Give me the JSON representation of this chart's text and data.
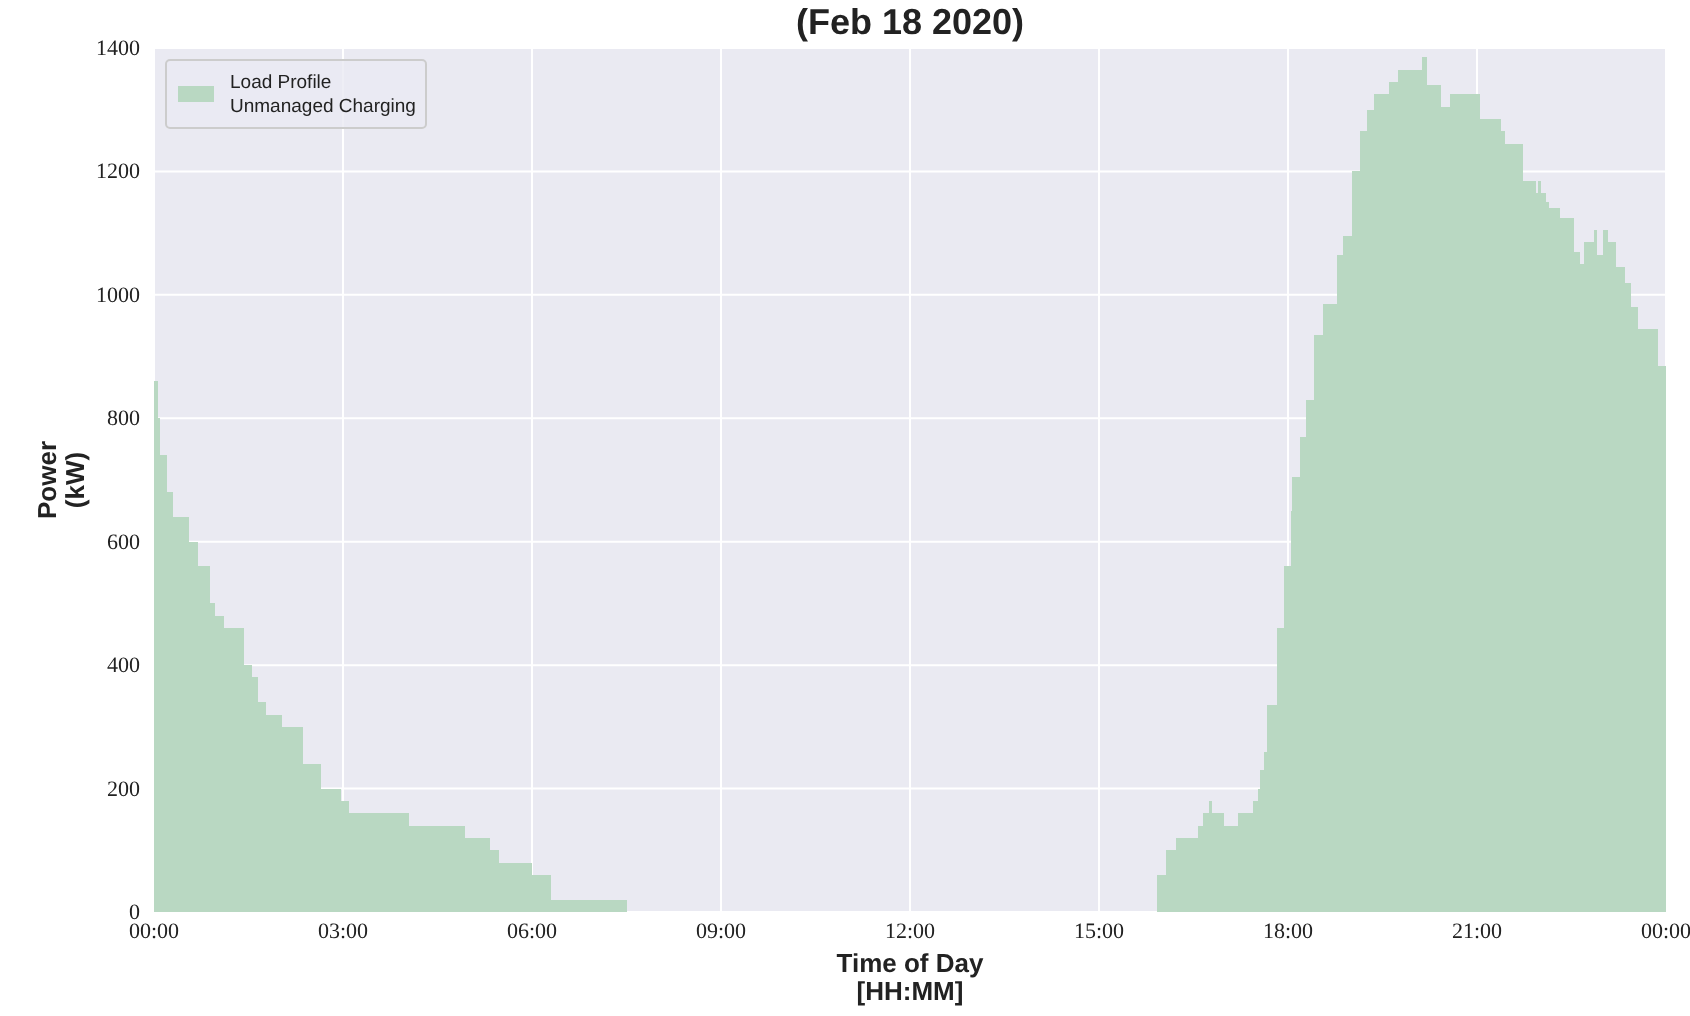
{
  "chart_data": {
    "type": "area",
    "title": "(Feb 18 2020)",
    "xlabel": "Time of Day\n[HH:MM]",
    "ylabel": "Power\n(kW)",
    "xlim": [
      0,
      24
    ],
    "xticks": [
      {
        "value": 0,
        "label": "00:00"
      },
      {
        "value": 3,
        "label": "03:00"
      },
      {
        "value": 6,
        "label": "06:00"
      },
      {
        "value": 9,
        "label": "09:00"
      },
      {
        "value": 12,
        "label": "12:00"
      },
      {
        "value": 15,
        "label": "15:00"
      },
      {
        "value": 18,
        "label": "18:00"
      },
      {
        "value": 21,
        "label": "21:00"
      },
      {
        "value": 24,
        "label": "00:00"
      }
    ],
    "ylim": [
      0,
      1400
    ],
    "yticks": [
      0,
      200,
      400,
      600,
      800,
      1000,
      1200,
      1400
    ],
    "grid": true,
    "legend": "top left",
    "series": [
      {
        "name": "Load Profile\nUnmanaged Charging",
        "color": "#b9d8c2",
        "x": [
          0,
          0.06,
          0.1,
          0.2,
          0.3,
          0.55,
          0.7,
          0.89,
          0.97,
          1.11,
          1.43,
          1.55,
          1.65,
          1.77,
          2.03,
          2.36,
          2.65,
          2.97,
          3.1,
          4.05,
          4.94,
          5.34,
          5.47,
          6.0,
          6.3,
          7.51,
          15.92,
          16.07,
          16.23,
          16.57,
          16.65,
          16.74,
          16.8,
          16.98,
          17.2,
          17.44,
          17.53,
          17.56,
          17.62,
          17.67,
          17.82,
          17.93,
          18.04,
          18.06,
          18.19,
          18.29,
          18.42,
          18.56,
          18.78,
          18.88,
          19.01,
          19.15,
          19.26,
          19.36,
          19.6,
          19.74,
          20.12,
          20.21,
          20.43,
          20.57,
          21.05,
          21.38,
          21.44,
          21.73,
          21.94,
          21.97,
          22.01,
          22.1,
          22.14,
          22.31,
          22.54,
          22.63,
          22.7,
          22.86,
          22.91,
          23.0,
          23.08,
          23.2,
          23.35,
          23.45,
          23.56,
          23.87,
          24
        ],
        "values": [
          860,
          800,
          740,
          680,
          640,
          600,
          560,
          500,
          480,
          460,
          400,
          380,
          340,
          320,
          300,
          240,
          200,
          180,
          160,
          140,
          120,
          100,
          80,
          60,
          20,
          0,
          60,
          100,
          120,
          140,
          160,
          180,
          160,
          140,
          160,
          180,
          200,
          230,
          260,
          335,
          460,
          560,
          650,
          705,
          770,
          830,
          935,
          985,
          1065,
          1095,
          1200,
          1265,
          1300,
          1325,
          1345,
          1365,
          1385,
          1340,
          1305,
          1325,
          1285,
          1265,
          1245,
          1185,
          1165,
          1185,
          1165,
          1150,
          1140,
          1125,
          1070,
          1050,
          1085,
          1105,
          1065,
          1105,
          1085,
          1045,
          1020,
          980,
          945,
          885,
          885
        ]
      }
    ]
  }
}
